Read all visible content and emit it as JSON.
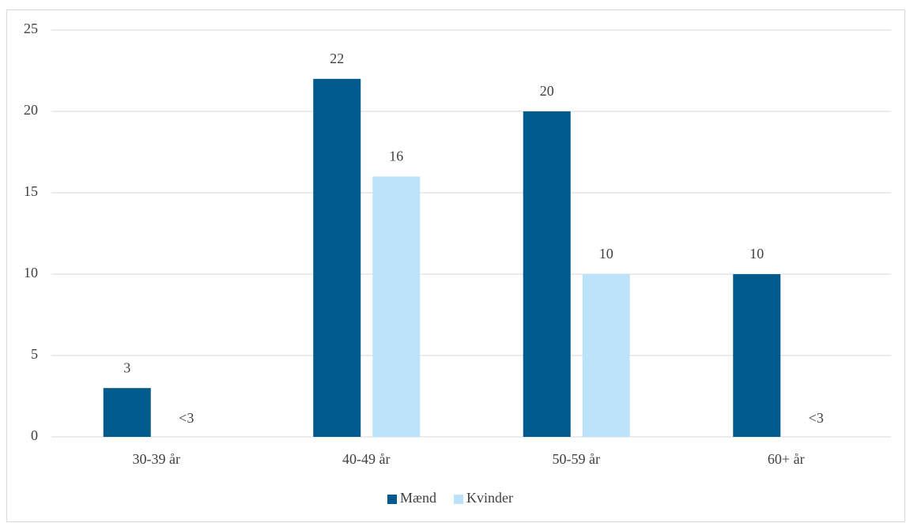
{
  "chart_data": {
    "type": "bar",
    "categories": [
      "30-39 år",
      "40-49 år",
      "50-59 år",
      "60+ år"
    ],
    "series": [
      {
        "name": "Mænd",
        "color": "#005a8c",
        "values": [
          3,
          22,
          20,
          10
        ]
      },
      {
        "name": "Kvinder",
        "color": "#bde3fb",
        "values": [
          null,
          16,
          10,
          null
        ],
        "value_labels": [
          "<3",
          "16",
          "10",
          "<3"
        ]
      }
    ],
    "ylim": [
      0,
      25
    ],
    "yticks": [
      0,
      5,
      10,
      15,
      20,
      25
    ],
    "grid": true,
    "legend": "bottom"
  }
}
